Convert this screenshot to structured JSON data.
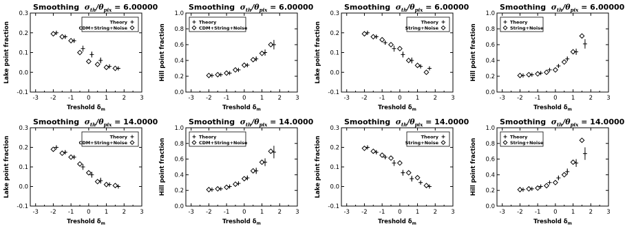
{
  "chart_data": [
    {
      "type": "scatter",
      "title": "Smoothing",
      "title_ratio": "σ",
      "title_sub1": "th",
      "title_mid": "/θ",
      "title_sub2": "pix",
      "title_value": "= 6.00000",
      "xlabel": "Treshold δ",
      "xlabel_sub": "m",
      "ylabel": "Lake point fraction",
      "xlim": [
        -3.3,
        3.0
      ],
      "ylim": [
        -0.1,
        0.3
      ],
      "xticks": [
        -3,
        -2,
        -1,
        0,
        1,
        2,
        3
      ],
      "yticks": [
        -0.1,
        0.0,
        0.1,
        0.2,
        0.3
      ],
      "legend_position": "top-right",
      "series": [
        {
          "name": "Theory",
          "marker": "plus",
          "x": [
            -2.0,
            -1.5,
            -1.0,
            -0.5,
            0.0,
            0.5,
            1.0,
            1.5
          ],
          "y": [
            0.2,
            0.18,
            0.16,
            0.12,
            0.09,
            0.06,
            0.03,
            0.02
          ],
          "err": [
            0.01,
            0.01,
            0.01,
            0.015,
            0.015,
            0.015,
            0.01,
            0.005
          ]
        },
        {
          "name": "CDM+String+Noise",
          "marker": "diamond",
          "x": [
            -2.0,
            -1.5,
            -1.0,
            -0.5,
            0.0,
            0.5,
            1.0,
            1.5
          ],
          "y": [
            0.195,
            0.18,
            0.16,
            0.1,
            0.055,
            0.04,
            0.025,
            0.02
          ]
        }
      ]
    },
    {
      "type": "scatter",
      "title": "Smoothing",
      "title_ratio": "σ",
      "title_sub1": "th",
      "title_mid": "/θ",
      "title_sub2": "pix",
      "title_value": "= 6.00000",
      "xlabel": "Treshold δ",
      "xlabel_sub": "m",
      "ylabel": "Hill point fraction",
      "xlim": [
        -3.3,
        3.0
      ],
      "ylim": [
        0.0,
        1.0
      ],
      "xticks": [
        -3,
        -2,
        -1,
        0,
        1,
        2,
        3
      ],
      "yticks": [
        0.0,
        0.2,
        0.4,
        0.6,
        0.8,
        1.0
      ],
      "legend_position": "top-left",
      "series": [
        {
          "name": "Theory",
          "marker": "plus",
          "x": [
            -2.0,
            -1.5,
            -1.0,
            -0.5,
            0.0,
            0.5,
            1.0,
            1.5
          ],
          "y": [
            0.21,
            0.22,
            0.24,
            0.28,
            0.34,
            0.42,
            0.5,
            0.6
          ],
          "err": [
            0.01,
            0.01,
            0.01,
            0.015,
            0.02,
            0.03,
            0.04,
            0.06
          ]
        },
        {
          "name": "CDM+String+Noise",
          "marker": "diamond",
          "x": [
            -2.0,
            -1.5,
            -1.0,
            -0.5,
            0.0,
            0.5,
            1.0,
            1.5
          ],
          "y": [
            0.21,
            0.22,
            0.24,
            0.28,
            0.34,
            0.41,
            0.49,
            0.6
          ]
        }
      ]
    },
    {
      "type": "scatter",
      "title": "Smoothing",
      "title_ratio": "σ",
      "title_sub1": "th",
      "title_mid": "/θ",
      "title_sub2": "pix",
      "title_value": "= 6.00000",
      "xlabel": "Treshold δ",
      "xlabel_sub": "m",
      "ylabel": "Lake point fraction",
      "xlim": [
        -3.3,
        3.0
      ],
      "ylim": [
        -0.1,
        0.3
      ],
      "xticks": [
        -3,
        -2,
        -1,
        0,
        1,
        2,
        3
      ],
      "yticks": [
        -0.1,
        0.0,
        0.1,
        0.2,
        0.3
      ],
      "legend_position": "top-right",
      "series": [
        {
          "name": "Theory",
          "marker": "plus",
          "x": [
            -2.0,
            -1.5,
            -1.0,
            -0.5,
            0.0,
            0.5,
            1.0,
            1.5
          ],
          "y": [
            0.2,
            0.18,
            0.15,
            0.12,
            0.09,
            0.06,
            0.03,
            0.02
          ],
          "err": [
            0.01,
            0.01,
            0.01,
            0.015,
            0.015,
            0.015,
            0.01,
            0.01
          ]
        },
        {
          "name": "String+Noise",
          "marker": "diamond",
          "x": [
            -2.0,
            -1.5,
            -1.0,
            -0.5,
            0.0,
            0.5,
            1.0,
            1.5
          ],
          "y": [
            0.195,
            0.18,
            0.165,
            0.14,
            0.12,
            0.06,
            0.035,
            0.0
          ]
        }
      ]
    },
    {
      "type": "scatter",
      "title": "Smoothing",
      "title_ratio": "σ",
      "title_sub1": "th",
      "title_mid": "/θ",
      "title_sub2": "pix",
      "title_value": "= 6.00000",
      "xlabel": "Treshold δ",
      "xlabel_sub": "m",
      "ylabel": "Hill point fraction",
      "xlim": [
        -3.3,
        3.0
      ],
      "ylim": [
        0.0,
        1.0
      ],
      "xticks": [
        -3,
        -2,
        -1,
        0,
        1,
        2,
        3
      ],
      "yticks": [
        0.0,
        0.2,
        0.4,
        0.6,
        0.8,
        1.0
      ],
      "legend_position": "top-left",
      "series": [
        {
          "name": "Theory",
          "marker": "plus",
          "x": [
            -2.0,
            -1.5,
            -1.0,
            -0.5,
            0.0,
            0.5,
            1.0,
            1.5
          ],
          "y": [
            0.21,
            0.22,
            0.24,
            0.28,
            0.33,
            0.42,
            0.51,
            0.61
          ],
          "err": [
            0.01,
            0.01,
            0.01,
            0.015,
            0.02,
            0.03,
            0.04,
            0.06
          ]
        },
        {
          "name": "String+Noise",
          "marker": "diamond",
          "x": [
            -2.0,
            -1.5,
            -1.0,
            -0.5,
            0.0,
            0.5,
            1.0,
            1.5
          ],
          "y": [
            0.21,
            0.22,
            0.23,
            0.25,
            0.28,
            0.38,
            0.51,
            0.71
          ]
        }
      ]
    },
    {
      "type": "scatter",
      "title": "Smoothing",
      "title_ratio": "σ",
      "title_sub1": "th",
      "title_mid": "/θ",
      "title_sub2": "pix",
      "title_value": "= 14.0000",
      "xlabel": "Treshold δ",
      "xlabel_sub": "m",
      "ylabel": "Lake point fraction",
      "xlim": [
        -3.3,
        3.0
      ],
      "ylim": [
        -0.1,
        0.3
      ],
      "xticks": [
        -3,
        -2,
        -1,
        0,
        1,
        2,
        3
      ],
      "yticks": [
        -0.1,
        0.0,
        0.1,
        0.2,
        0.3
      ],
      "legend_position": "top-right",
      "series": [
        {
          "name": "Theory",
          "marker": "plus",
          "x": [
            -2.0,
            -1.5,
            -1.0,
            -0.5,
            0.0,
            0.5,
            1.0,
            1.5
          ],
          "y": [
            0.2,
            0.175,
            0.15,
            0.1,
            0.06,
            0.03,
            0.01,
            0.0
          ],
          "err": [
            0.01,
            0.01,
            0.01,
            0.015,
            0.015,
            0.015,
            0.01,
            0.005
          ]
        },
        {
          "name": "CDM+String+Noise",
          "marker": "diamond",
          "x": [
            -2.0,
            -1.5,
            -1.0,
            -0.5,
            0.0,
            0.5,
            1.0,
            1.5
          ],
          "y": [
            0.19,
            0.17,
            0.15,
            0.115,
            0.07,
            0.025,
            0.01,
            0.005
          ]
        }
      ]
    },
    {
      "type": "scatter",
      "title": "Smoothing",
      "title_ratio": "σ",
      "title_sub1": "th",
      "title_mid": "/θ",
      "title_sub2": "pix",
      "title_value": "= 14.0000",
      "xlabel": "Treshold δ",
      "xlabel_sub": "m",
      "ylabel": "Hill point fraction",
      "xlim": [
        -3.3,
        3.0
      ],
      "ylim": [
        0.0,
        1.0
      ],
      "xticks": [
        -3,
        -2,
        -1,
        0,
        1,
        2,
        3
      ],
      "yticks": [
        0.0,
        0.2,
        0.4,
        0.6,
        0.8,
        1.0
      ],
      "legend_position": "top-left",
      "series": [
        {
          "name": "Theory",
          "marker": "plus",
          "x": [
            -2.0,
            -1.5,
            -1.0,
            -0.5,
            0.0,
            0.5,
            1.0,
            1.5
          ],
          "y": [
            0.21,
            0.22,
            0.25,
            0.29,
            0.36,
            0.45,
            0.56,
            0.69
          ],
          "err": [
            0.01,
            0.01,
            0.015,
            0.02,
            0.03,
            0.04,
            0.05,
            0.08
          ]
        },
        {
          "name": "CDM+String+Noise",
          "marker": "diamond",
          "x": [
            -2.0,
            -1.5,
            -1.0,
            -0.5,
            0.0,
            0.5,
            1.0,
            1.5
          ],
          "y": [
            0.21,
            0.22,
            0.24,
            0.28,
            0.35,
            0.45,
            0.56,
            0.7
          ]
        }
      ]
    },
    {
      "type": "scatter",
      "title": "Smoothing",
      "title_ratio": "σ",
      "title_sub1": "th",
      "title_mid": "/θ",
      "title_sub2": "pix",
      "title_value": "= 14.0000",
      "xlabel": "Treshold δ",
      "xlabel_sub": "m",
      "ylabel": "Lake point fraction",
      "xlim": [
        -3.3,
        3.0
      ],
      "ylim": [
        -0.1,
        0.3
      ],
      "xticks": [
        -3,
        -2,
        -1,
        0,
        1,
        2,
        3
      ],
      "yticks": [
        -0.1,
        0.0,
        0.1,
        0.2,
        0.3
      ],
      "legend_position": "top-right",
      "series": [
        {
          "name": "Theory",
          "marker": "plus",
          "x": [
            -2.0,
            -1.5,
            -1.0,
            -0.5,
            0.0,
            0.5,
            1.0,
            1.5
          ],
          "y": [
            0.2,
            0.175,
            0.15,
            0.12,
            0.07,
            0.04,
            0.02,
            0.0
          ],
          "err": [
            0.01,
            0.01,
            0.01,
            0.015,
            0.015,
            0.015,
            0.01,
            0.01
          ]
        },
        {
          "name": "String+Noise",
          "marker": "diamond",
          "x": [
            -2.0,
            -1.5,
            -1.0,
            -0.5,
            0.0,
            0.5,
            1.0,
            1.5
          ],
          "y": [
            0.195,
            0.18,
            0.16,
            0.145,
            0.12,
            0.07,
            0.045,
            0.005
          ]
        }
      ]
    },
    {
      "type": "scatter",
      "title": "Smoothing",
      "title_ratio": "σ",
      "title_sub1": "th",
      "title_mid": "/θ",
      "title_sub2": "pix",
      "title_value": "= 14.0000",
      "xlabel": "Treshold δ",
      "xlabel_sub": "m",
      "ylabel": "Hill point fraction",
      "xlim": [
        -3.3,
        3.0
      ],
      "ylim": [
        0.0,
        1.0
      ],
      "xticks": [
        -3,
        -2,
        -1,
        0,
        1,
        2,
        3
      ],
      "yticks": [
        0.0,
        0.2,
        0.4,
        0.6,
        0.8,
        1.0
      ],
      "legend_position": "top-left",
      "series": [
        {
          "name": "Theory",
          "marker": "plus",
          "x": [
            -2.0,
            -1.5,
            -1.0,
            -0.5,
            0.0,
            0.5,
            1.0,
            1.5
          ],
          "y": [
            0.21,
            0.22,
            0.25,
            0.3,
            0.36,
            0.44,
            0.55,
            0.67
          ],
          "err": [
            0.01,
            0.01,
            0.015,
            0.02,
            0.03,
            0.04,
            0.05,
            0.08
          ]
        },
        {
          "name": "String+Noise",
          "marker": "diamond",
          "x": [
            -2.0,
            -1.5,
            -1.0,
            -0.5,
            0.0,
            0.5,
            1.0,
            1.5
          ],
          "y": [
            0.21,
            0.22,
            0.23,
            0.26,
            0.3,
            0.4,
            0.56,
            0.84
          ]
        }
      ]
    }
  ]
}
